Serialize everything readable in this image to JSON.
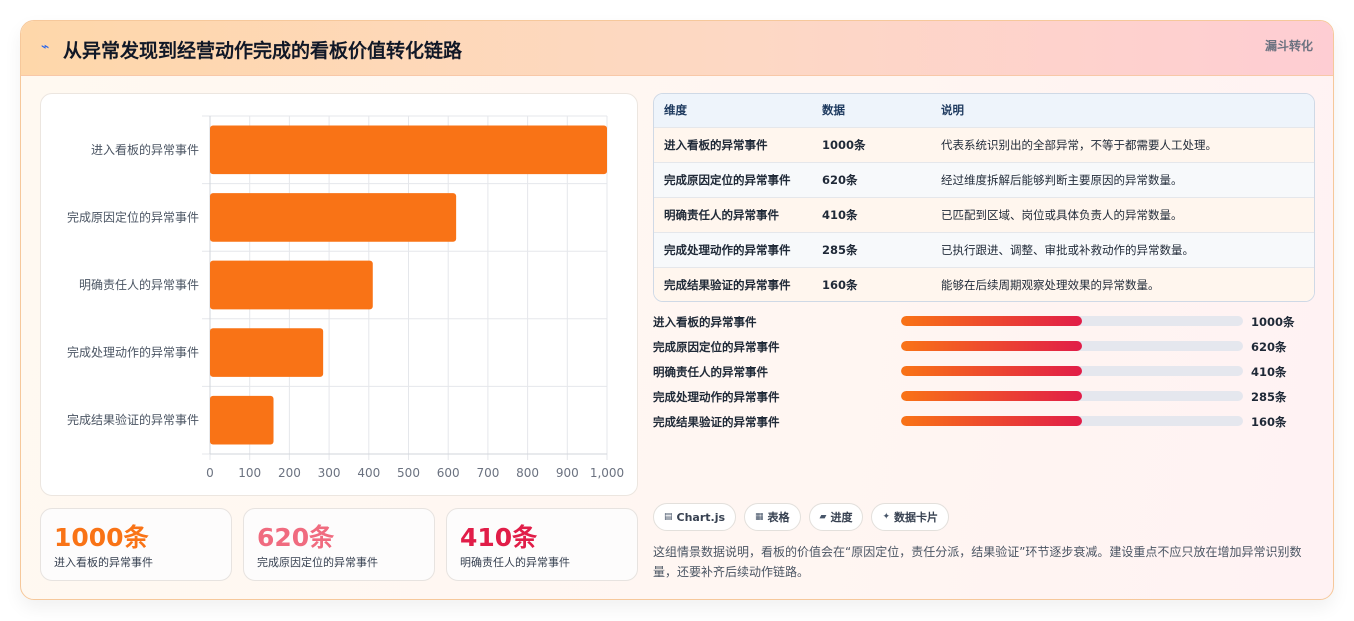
{
  "header": {
    "icon": "chart-line-icon",
    "title": "从异常发现到经营动作完成的看板价值转化链路",
    "tag": "漏斗转化"
  },
  "colors": {
    "bar": "#f97316",
    "kpi1": "#f97316",
    "kpi2": "#f06b7f",
    "kpi3": "#e11d48"
  },
  "chart_data": {
    "type": "bar",
    "orientation": "horizontal",
    "categories": [
      "进入看板的异常事件",
      "完成原因定位的异常事件",
      "明确责任人的异常事件",
      "完成处理动作的异常事件",
      "完成结果验证的异常事件"
    ],
    "values": [
      1000,
      620,
      410,
      285,
      160
    ],
    "xlim": [
      0,
      1000
    ],
    "xticks": [
      "0",
      "100",
      "200",
      "300",
      "400",
      "500",
      "600",
      "700",
      "800",
      "900",
      "1,000"
    ],
    "grid": true,
    "title": "",
    "xlabel": "",
    "ylabel": ""
  },
  "kpis": [
    {
      "value": "1000条",
      "label": "进入看板的异常事件"
    },
    {
      "value": "620条",
      "label": "完成原因定位的异常事件"
    },
    {
      "value": "410条",
      "label": "明确责任人的异常事件"
    }
  ],
  "table": {
    "headers": [
      "维度",
      "数据",
      "说明"
    ],
    "rows": [
      [
        "进入看板的异常事件",
        "1000条",
        "代表系统识别出的全部异常，不等于都需要人工处理。"
      ],
      [
        "完成原因定位的异常事件",
        "620条",
        "经过维度拆解后能够判断主要原因的异常数量。"
      ],
      [
        "明确责任人的异常事件",
        "410条",
        "已匹配到区域、岗位或具体负责人的异常数量。"
      ],
      [
        "完成处理动作的异常事件",
        "285条",
        "已执行跟进、调整、审批或补救动作的异常数量。"
      ],
      [
        "完成结果验证的异常事件",
        "160条",
        "能够在后续周期观察处理效果的异常数量。"
      ]
    ]
  },
  "progress": [
    {
      "label": "进入看板的异常事件",
      "value": "1000条",
      "fill": 0.53
    },
    {
      "label": "完成原因定位的异常事件",
      "value": "620条",
      "fill": 0.53
    },
    {
      "label": "明确责任人的异常事件",
      "value": "410条",
      "fill": 0.53
    },
    {
      "label": "完成处理动作的异常事件",
      "value": "285条",
      "fill": 0.53
    },
    {
      "label": "完成结果验证的异常事件",
      "value": "160条",
      "fill": 0.53
    }
  ],
  "chips": [
    {
      "icon": "chart-icon",
      "glyph": "▤",
      "label": "Chart.js"
    },
    {
      "icon": "table-icon",
      "glyph": "▦",
      "label": "表格"
    },
    {
      "icon": "progress-icon",
      "glyph": "▰",
      "label": "进度"
    },
    {
      "icon": "sparkle-icon",
      "glyph": "✦",
      "label": "数据卡片"
    }
  ],
  "note": "这组情景数据说明，看板的价值会在“原因定位，责任分派，结果验证”环节逐步衰减。建设重点不应只放在增加异常识别数量，还要补齐后续动作链路。"
}
